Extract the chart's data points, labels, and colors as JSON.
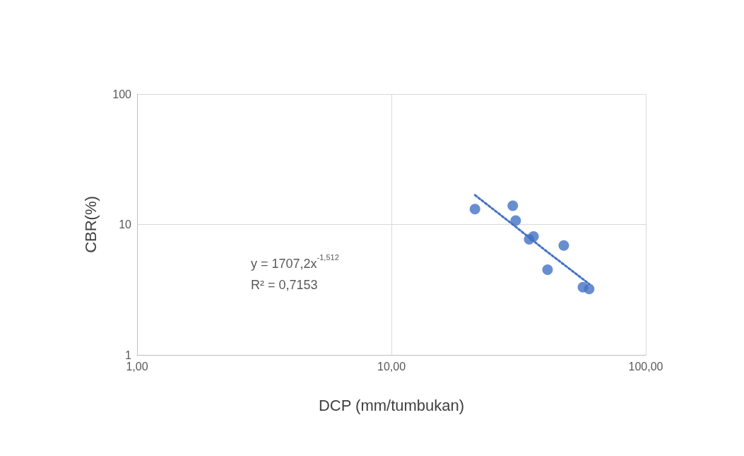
{
  "chart_data": {
    "type": "scatter",
    "xlabel": "DCP (mm/tumbukan)",
    "ylabel": "CBR(%)",
    "log": "xy",
    "grid": true,
    "marker": "circle",
    "xlim": [
      1,
      100
    ],
    "xticks": [
      {
        "value": 1,
        "label": "1,00"
      },
      {
        "value": 10,
        "label": "10,00"
      },
      {
        "value": 100,
        "label": "100,00"
      }
    ],
    "ylim": [
      1,
      100
    ],
    "yticks": [
      1,
      10,
      100
    ],
    "series": [
      {
        "type": "scatter",
        "color": "#4472c4",
        "x": [
          21.3,
          30.0,
          30.8,
          34.8,
          36.2,
          47.6,
          41.1,
          56.6,
          59.9
        ],
        "values": [
          13.1,
          13.9,
          10.7,
          7.7,
          8.1,
          6.9,
          4.5,
          3.3,
          3.2
        ]
      },
      {
        "type": "line",
        "color": "#4472c4",
        "marker": "none",
        "line_style": "dotted",
        "x": [
          21.3,
          30,
          40,
          59.9
        ],
        "values": [
          16.8,
          10.0,
          6.4,
          3.5
        ]
      }
    ],
    "annotations": [
      "y = 1707,2x$^{-1,512}$",
      "R² = 0,7153"
    ]
  }
}
